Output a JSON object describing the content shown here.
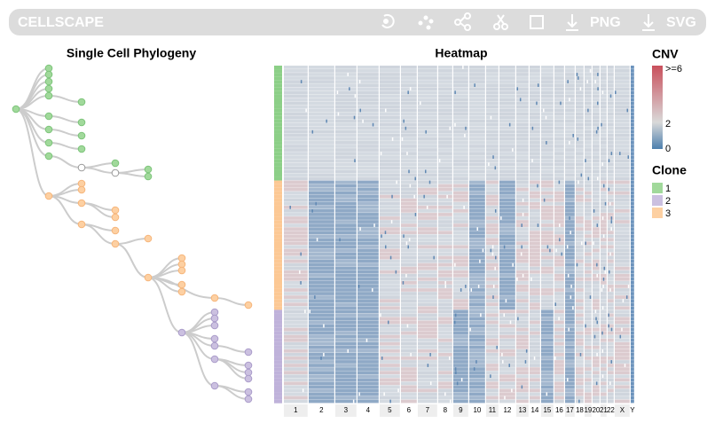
{
  "toolbar": {
    "title": "CELLSCAPE",
    "buttons": [
      "PNG",
      "SVG"
    ]
  },
  "tree": {
    "title": "Single Cell Phylogeny"
  },
  "heatmap": {
    "title": "Heatmap",
    "chromosomes": [
      "1",
      "2",
      "3",
      "4",
      "5",
      "6",
      "7",
      "8",
      "9",
      "10",
      "11",
      "12",
      "13",
      "14",
      "15",
      "16",
      "17",
      "18",
      "19",
      "20",
      "21",
      "22",
      "X",
      "Y"
    ]
  },
  "legend": {
    "cnv_title": "CNV",
    "cnv_labels": [
      ">=6",
      "2",
      "0"
    ],
    "clone_title": "Clone",
    "clones": [
      "1",
      "2",
      "3"
    ]
  }
}
